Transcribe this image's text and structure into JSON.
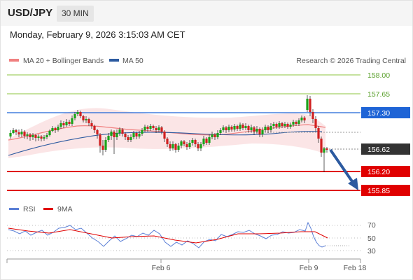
{
  "header": {
    "symbol": "USD/JPY",
    "timeframe": "30 MIN"
  },
  "timestamp": "Monday, February 9, 2026 3:15:03 AM CET",
  "legend": {
    "ma20": "MA 20 + Bollinger Bands",
    "ma50": "MA 50",
    "ma20_color": "#f08080",
    "ma50_color": "#2c5aa0"
  },
  "credit": "Research © 2026 Trading Central",
  "levels": [
    {
      "label": "158.00",
      "style": "green-text"
    },
    {
      "label": "157.65",
      "style": "green-text"
    },
    {
      "label": "157.30",
      "style": "blue-box"
    },
    {
      "label": "156.62",
      "style": "dark-box"
    },
    {
      "label": "156.20",
      "style": "red-box"
    },
    {
      "label": "155.85",
      "style": "red-box"
    }
  ],
  "rsi_legend": {
    "rsi": "RSI",
    "ma": "9MA",
    "rsi_color": "#5b7fd6",
    "ma_color": "#e00000"
  },
  "rsi_axis": [
    "70",
    "50",
    "30"
  ],
  "x_axis": [
    "Feb 6",
    "Feb 9",
    "Feb 18"
  ],
  "colors": {
    "bull": "#1aa31a",
    "bear": "#d02020",
    "blue": "#1e64d6",
    "red": "#e00000",
    "green_line": "#8cc63f",
    "arrow": "#2c5aa0"
  }
}
